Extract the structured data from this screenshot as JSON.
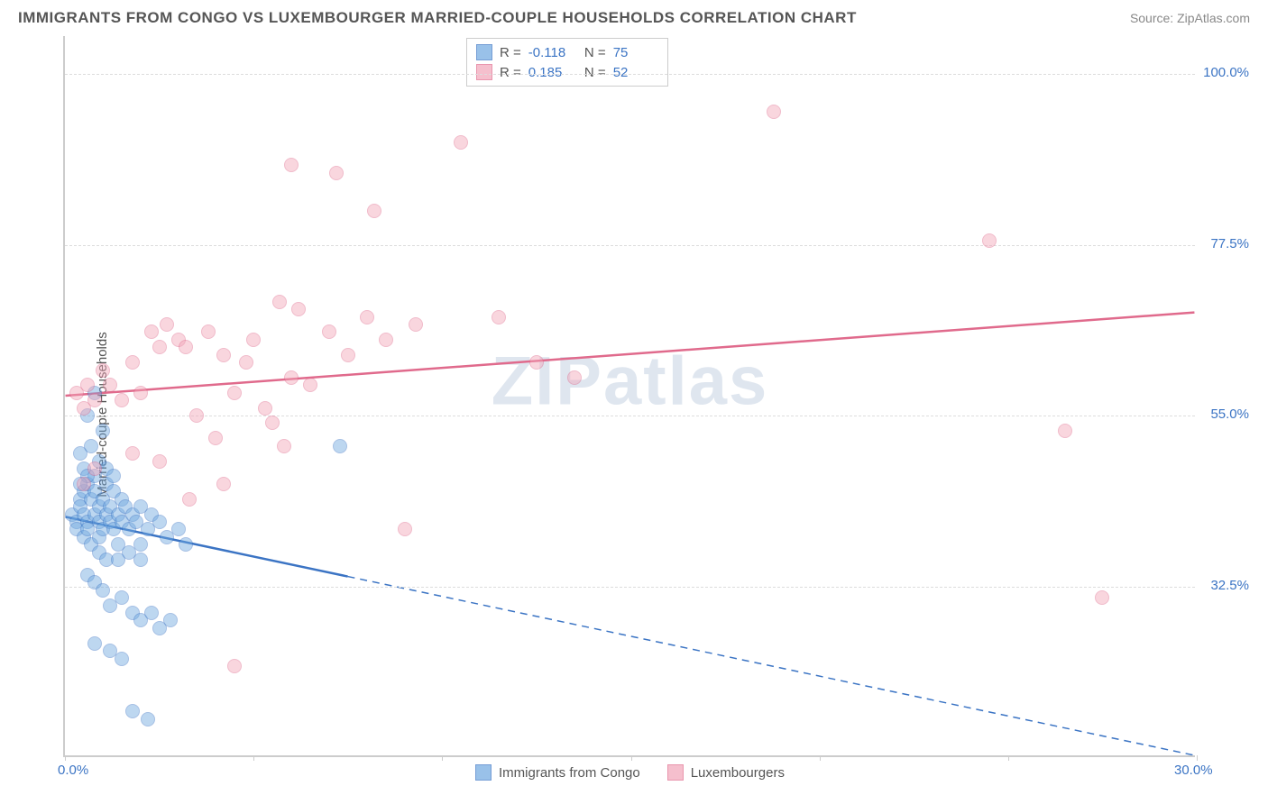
{
  "title": "IMMIGRANTS FROM CONGO VS LUXEMBOURGER MARRIED-COUPLE HOUSEHOLDS CORRELATION CHART",
  "source": "Source: ZipAtlas.com",
  "watermark": "ZIPatlas",
  "yaxis_label": "Married-couple Households",
  "chart": {
    "type": "scatter",
    "background_color": "#ffffff",
    "grid_color": "#dddddd",
    "axis_color": "#cccccc",
    "tick_label_color": "#3b74c4",
    "axis_label_color": "#555555",
    "title_color": "#555555",
    "title_fontsize": 17,
    "label_fontsize": 15,
    "tick_fontsize": 15,
    "xlim": [
      0,
      30
    ],
    "ylim": [
      10,
      105
    ],
    "xtick_positions": [
      0,
      5,
      10,
      15,
      20,
      25,
      30
    ],
    "xtick_labels_shown": {
      "0": "0.0%",
      "30": "30.0%"
    },
    "ytick_positions": [
      32.5,
      55.0,
      77.5,
      100.0
    ],
    "ytick_labels": [
      "32.5%",
      "55.0%",
      "77.5%",
      "100.0%"
    ],
    "point_radius": 8,
    "point_border_width": 1,
    "series": [
      {
        "name": "Immigrants from Congo",
        "fill_color": "#6ea8e0",
        "fill_opacity": 0.45,
        "border_color": "#3b74c4",
        "R": "-0.118",
        "N": "75",
        "trend": {
          "y_at_x0": 41.5,
          "y_at_x30": 10,
          "solid_until_x": 7.5,
          "stroke_width": 2.5
        },
        "points": [
          [
            0.2,
            42
          ],
          [
            0.3,
            41
          ],
          [
            0.3,
            40
          ],
          [
            0.4,
            44
          ],
          [
            0.4,
            43
          ],
          [
            0.5,
            42
          ],
          [
            0.5,
            45
          ],
          [
            0.5,
            39
          ],
          [
            0.6,
            46
          ],
          [
            0.6,
            41
          ],
          [
            0.6,
            40
          ],
          [
            0.7,
            44
          ],
          [
            0.7,
            38
          ],
          [
            0.8,
            42
          ],
          [
            0.8,
            45
          ],
          [
            0.8,
            47
          ],
          [
            0.9,
            43
          ],
          [
            0.9,
            41
          ],
          [
            0.9,
            39
          ],
          [
            1.0,
            44
          ],
          [
            1.0,
            40
          ],
          [
            1.1,
            42
          ],
          [
            1.1,
            46
          ],
          [
            1.2,
            41
          ],
          [
            1.2,
            43
          ],
          [
            1.3,
            40
          ],
          [
            1.3,
            45
          ],
          [
            1.4,
            42
          ],
          [
            1.4,
            38
          ],
          [
            1.5,
            41
          ],
          [
            1.5,
            44
          ],
          [
            1.6,
            43
          ],
          [
            1.7,
            40
          ],
          [
            1.8,
            42
          ],
          [
            1.9,
            41
          ],
          [
            2.0,
            38
          ],
          [
            2.0,
            43
          ],
          [
            2.2,
            40
          ],
          [
            2.3,
            42
          ],
          [
            2.5,
            41
          ],
          [
            2.7,
            39
          ],
          [
            3.0,
            40
          ],
          [
            0.6,
            55
          ],
          [
            0.8,
            58
          ],
          [
            1.0,
            53
          ],
          [
            0.4,
            50
          ],
          [
            0.5,
            48
          ],
          [
            0.7,
            51
          ],
          [
            0.9,
            49
          ],
          [
            1.1,
            48
          ],
          [
            1.3,
            47
          ],
          [
            7.3,
            51
          ],
          [
            0.6,
            34
          ],
          [
            0.8,
            33
          ],
          [
            1.0,
            32
          ],
          [
            1.2,
            30
          ],
          [
            1.5,
            31
          ],
          [
            1.8,
            29
          ],
          [
            2.0,
            28
          ],
          [
            2.3,
            29
          ],
          [
            2.5,
            27
          ],
          [
            2.8,
            28
          ],
          [
            3.2,
            38
          ],
          [
            0.8,
            25
          ],
          [
            1.2,
            24
          ],
          [
            1.5,
            23
          ],
          [
            0.9,
            37
          ],
          [
            1.1,
            36
          ],
          [
            1.4,
            36
          ],
          [
            1.7,
            37
          ],
          [
            2.0,
            36
          ],
          [
            1.8,
            16
          ],
          [
            2.2,
            15
          ],
          [
            0.6,
            47
          ],
          [
            0.4,
            46
          ]
        ]
      },
      {
        "name": "Luxembourgers",
        "fill_color": "#f2a5b8",
        "fill_opacity": 0.45,
        "border_color": "#e06a8c",
        "R": "0.185",
        "N": "52",
        "trend": {
          "y_at_x0": 57.5,
          "y_at_x30": 68.5,
          "solid_until_x": 30,
          "stroke_width": 2.5
        },
        "points": [
          [
            0.3,
            58
          ],
          [
            0.5,
            56
          ],
          [
            0.6,
            59
          ],
          [
            0.8,
            57
          ],
          [
            1.0,
            61
          ],
          [
            1.2,
            59
          ],
          [
            1.5,
            57
          ],
          [
            1.8,
            62
          ],
          [
            2.0,
            58
          ],
          [
            2.3,
            66
          ],
          [
            2.5,
            64
          ],
          [
            2.7,
            67
          ],
          [
            3.0,
            65
          ],
          [
            3.2,
            64
          ],
          [
            3.5,
            55
          ],
          [
            3.8,
            66
          ],
          [
            4.0,
            52
          ],
          [
            4.2,
            63
          ],
          [
            4.5,
            58
          ],
          [
            4.8,
            62
          ],
          [
            5.0,
            65
          ],
          [
            5.3,
            56
          ],
          [
            5.5,
            54
          ],
          [
            5.8,
            51
          ],
          [
            6.0,
            60
          ],
          [
            6.5,
            59
          ],
          [
            7.0,
            66
          ],
          [
            7.5,
            63
          ],
          [
            8.0,
            68
          ],
          [
            8.5,
            65
          ],
          [
            9.0,
            40
          ],
          [
            9.3,
            67
          ],
          [
            6.2,
            69
          ],
          [
            5.7,
            70
          ],
          [
            8.2,
            82
          ],
          [
            7.2,
            87
          ],
          [
            6.0,
            88
          ],
          [
            10.5,
            91
          ],
          [
            11.5,
            68
          ],
          [
            12.5,
            62
          ],
          [
            4.2,
            46
          ],
          [
            3.3,
            44
          ],
          [
            2.5,
            49
          ],
          [
            1.8,
            50
          ],
          [
            13.5,
            60
          ],
          [
            18.8,
            95
          ],
          [
            24.5,
            78
          ],
          [
            26.5,
            53
          ],
          [
            27.5,
            31
          ],
          [
            4.5,
            22
          ],
          [
            0.5,
            46
          ],
          [
            0.8,
            48
          ]
        ]
      }
    ]
  }
}
